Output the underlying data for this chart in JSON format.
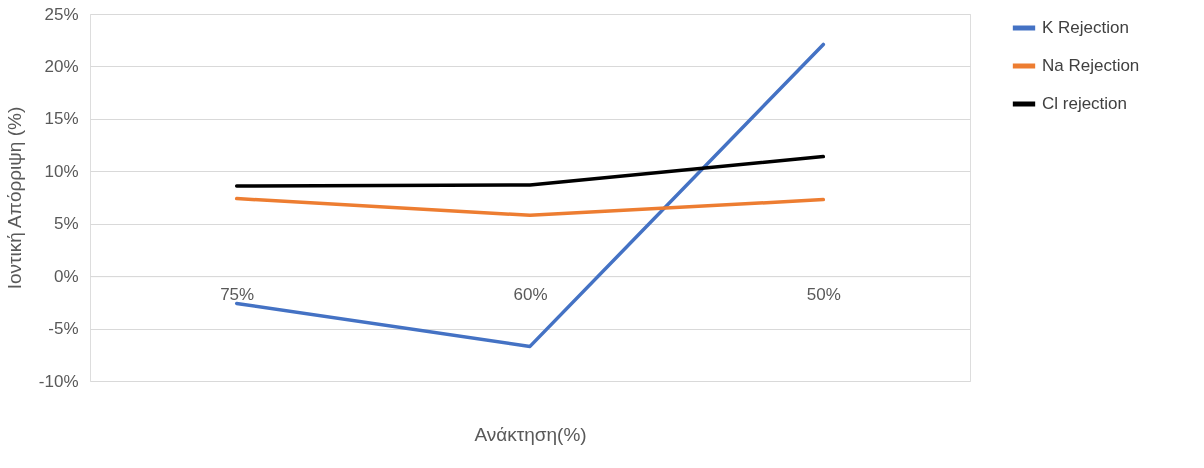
{
  "chart_data": {
    "type": "line",
    "xlabel": "Ανάκτηση(%)",
    "ylabel": "Ιοντική Απόρριψη (%)",
    "categories": [
      "75%",
      "60%",
      "50%"
    ],
    "series": [
      {
        "name": "K Rejection",
        "color": "#4472c4",
        "values": [
          -2.6,
          -6.7,
          22.1
        ]
      },
      {
        "name": "Na Rejection",
        "color": "#ed7d31",
        "values": [
          7.4,
          5.8,
          7.3
        ]
      },
      {
        "name": "Cl rejection",
        "color": "#000000",
        "values": [
          8.6,
          8.7,
          11.4
        ]
      }
    ],
    "ylim": [
      -10,
      25
    ],
    "yticks": [
      {
        "value": -10,
        "label": "-10%"
      },
      {
        "value": -5,
        "label": "-5%"
      },
      {
        "value": 0,
        "label": "0%"
      },
      {
        "value": 5,
        "label": "5%"
      },
      {
        "value": 10,
        "label": "10%"
      },
      {
        "value": 15,
        "label": "15%"
      },
      {
        "value": 20,
        "label": "20%"
      },
      {
        "value": 25,
        "label": "25%"
      }
    ],
    "grid": "y",
    "legend": "right",
    "marker": "none",
    "line_style": "solid"
  }
}
